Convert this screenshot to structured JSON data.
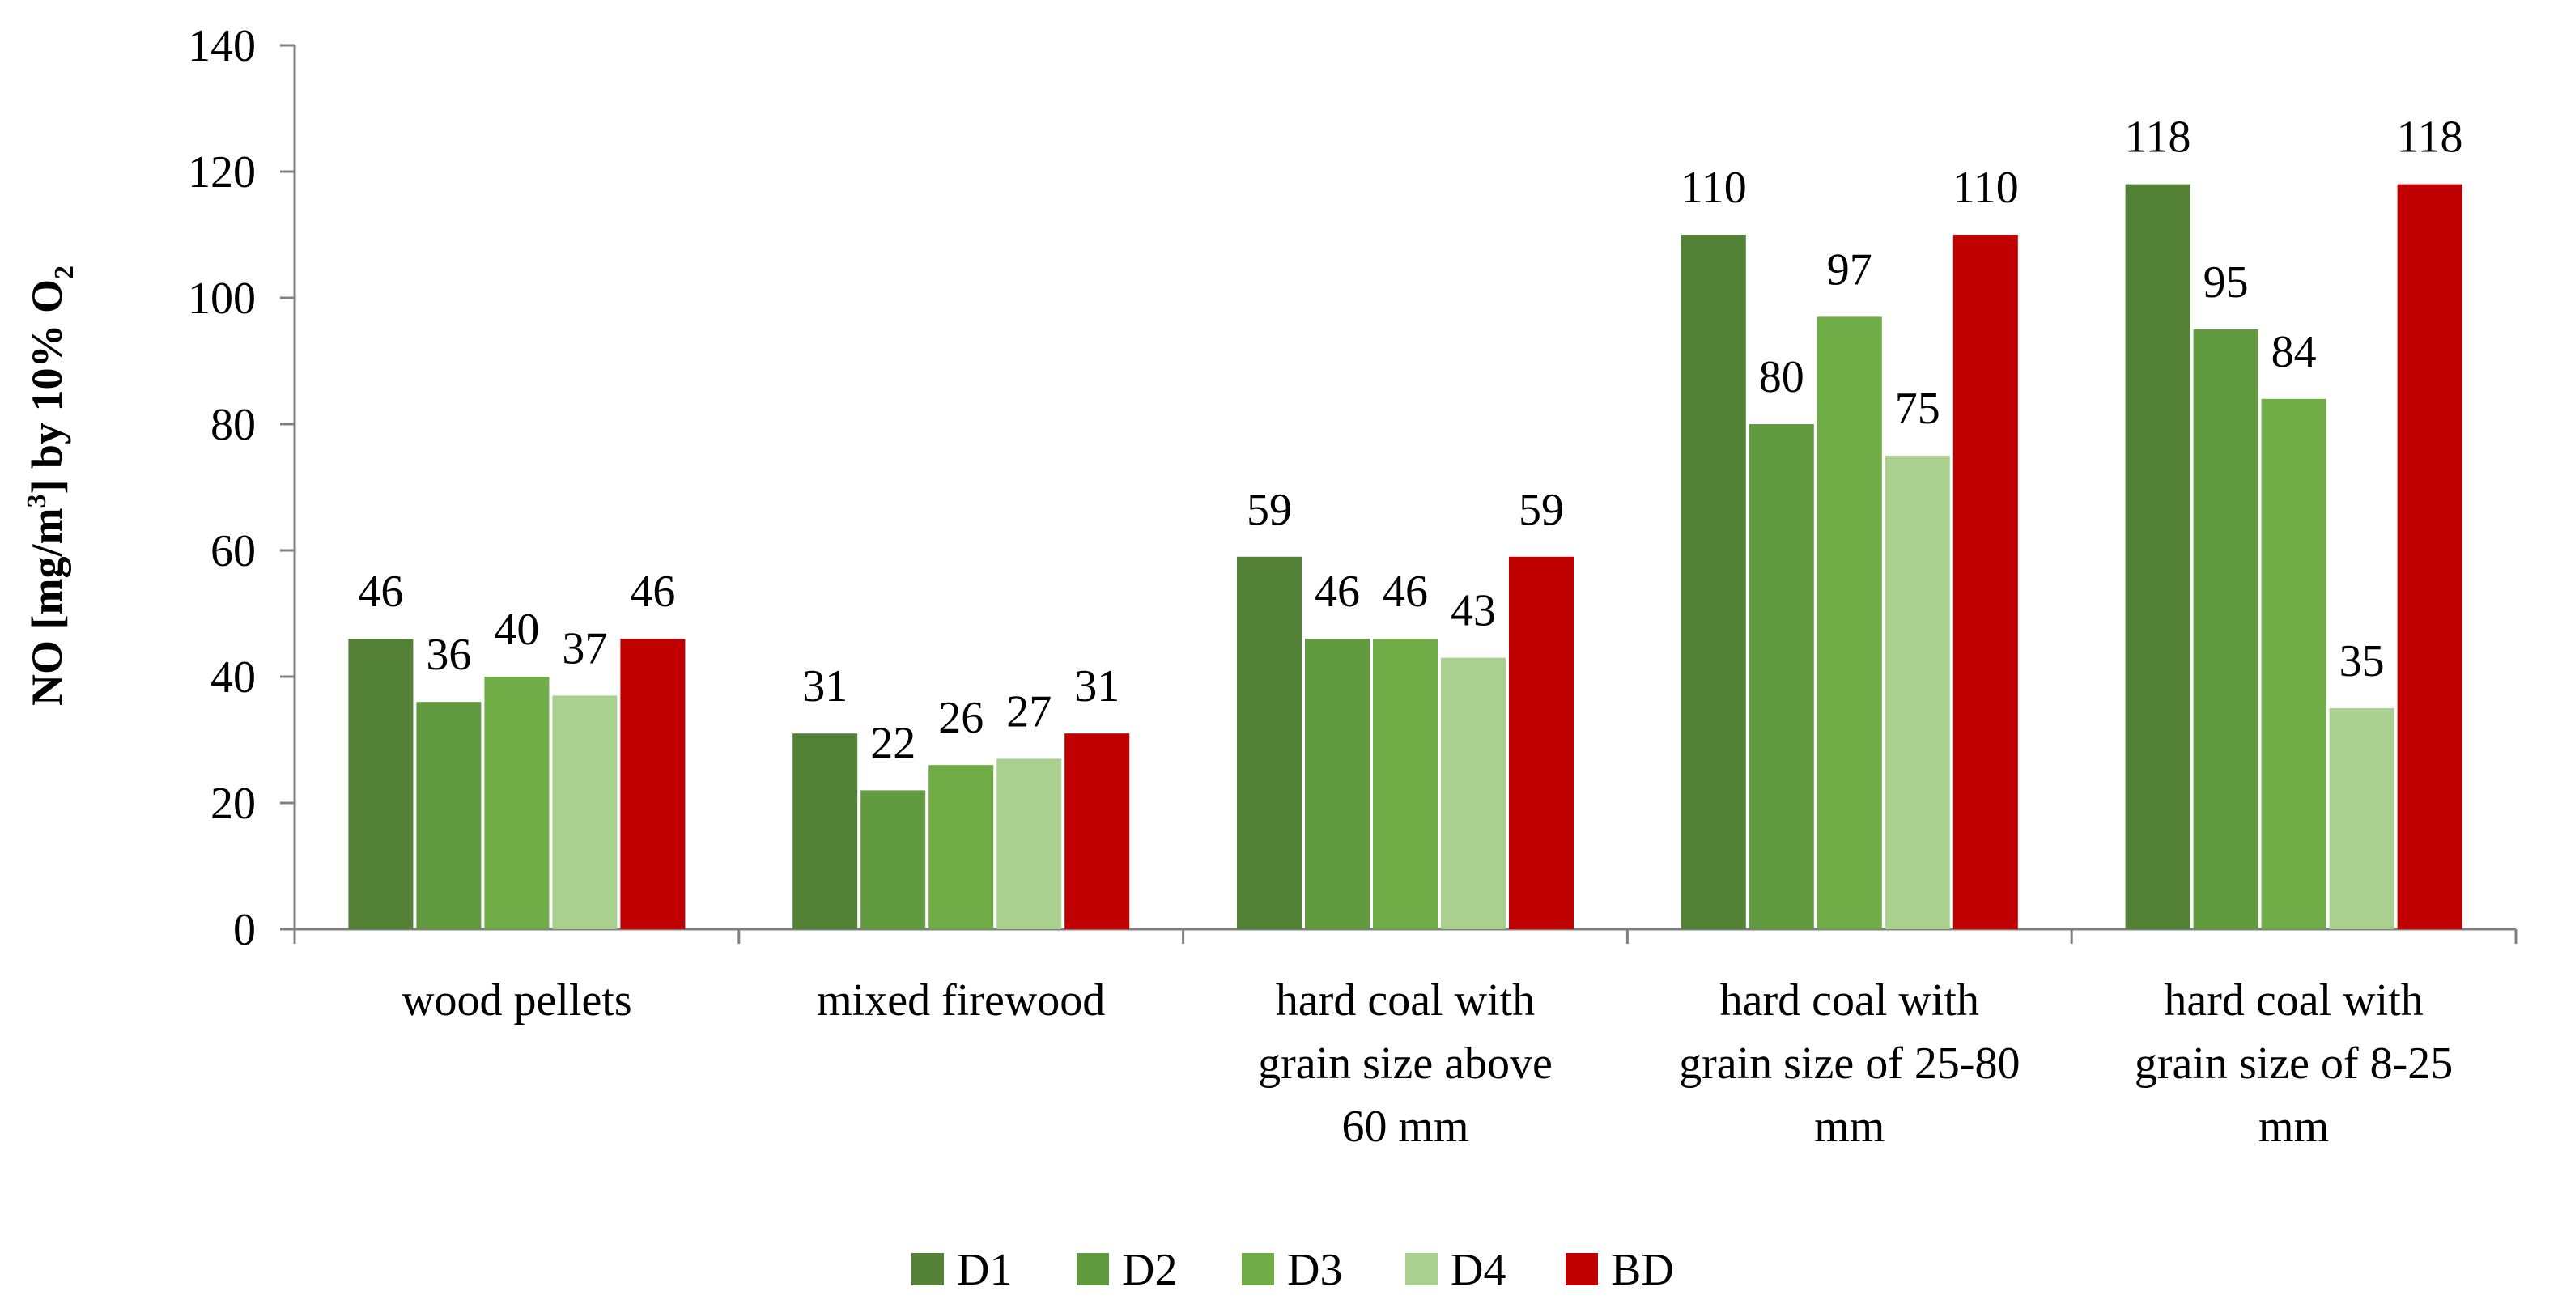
{
  "chart_data": {
    "type": "bar",
    "title": "",
    "xlabel": "",
    "ylabel": "NO [mg/m3] by 10% O2",
    "ylabel_parts": {
      "main": "NO [mg/m",
      "sup": "3",
      "mid": "] by 10% O",
      "sub": "2"
    },
    "ylim": [
      0,
      140
    ],
    "yticks": [
      0,
      20,
      40,
      60,
      80,
      100,
      120,
      140
    ],
    "grid": false,
    "legend_position": "bottom",
    "categories": [
      [
        "wood pellets"
      ],
      [
        "mixed firewood"
      ],
      [
        "hard coal with",
        "grain size above",
        "60 mm"
      ],
      [
        "hard coal with",
        "grain size of 25-80",
        "mm"
      ],
      [
        "hard coal with",
        "grain size of 8-25",
        "mm"
      ]
    ],
    "series": [
      {
        "name": "D1",
        "color": "#538135",
        "values": [
          46,
          31,
          59,
          110,
          118
        ]
      },
      {
        "name": "D2",
        "color": "#629B3F",
        "values": [
          36,
          22,
          46,
          80,
          95
        ]
      },
      {
        "name": "D3",
        "color": "#70AD47",
        "values": [
          40,
          26,
          46,
          97,
          84
        ]
      },
      {
        "name": "D4",
        "color": "#A9D08E",
        "values": [
          37,
          27,
          43,
          75,
          35
        ]
      },
      {
        "name": "BD",
        "color": "#C00000",
        "values": [
          46,
          31,
          59,
          110,
          118
        ]
      }
    ]
  }
}
